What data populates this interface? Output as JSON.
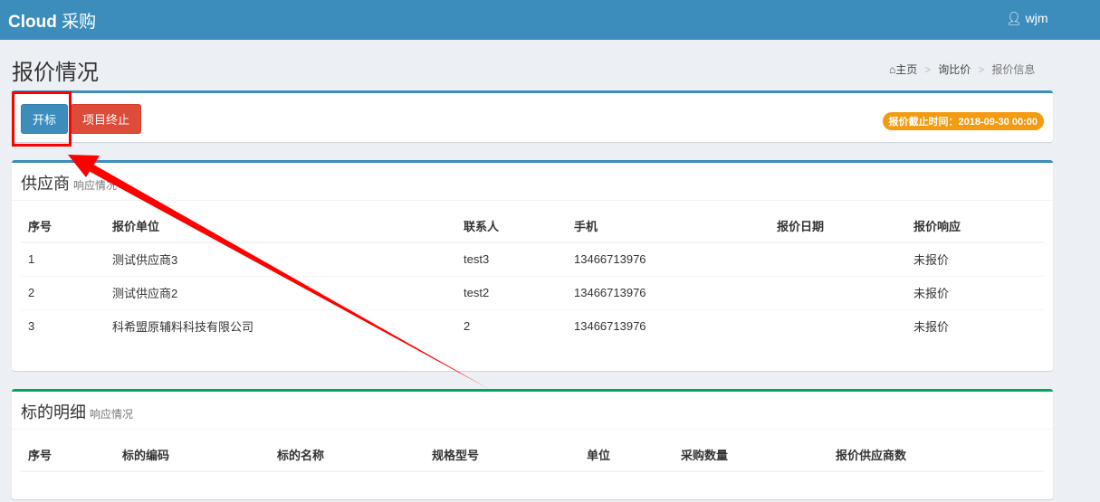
{
  "header": {
    "brand": "Cloud",
    "brand_cn": "采购",
    "user": "wjm"
  },
  "page": {
    "title": "报价情况",
    "breadcrumb": [
      "主页",
      "询比价",
      "报价信息"
    ]
  },
  "actions": {
    "open_bid": "开标",
    "terminate": "项目终止",
    "deadline": "报价截止时间：2018-09-30 00:00"
  },
  "suppliers": {
    "title": "供应商",
    "subtitle": "响应情况",
    "columns": [
      "序号",
      "报价单位",
      "联系人",
      "手机",
      "报价日期",
      "报价响应"
    ],
    "rows": [
      [
        "1",
        "测试供应商3",
        "test3",
        "13466713976",
        "",
        "未报价"
      ],
      [
        "2",
        "测试供应商2",
        "test2",
        "13466713976",
        "",
        "未报价"
      ],
      [
        "3",
        "科希盟原辅料科技有限公司",
        "2",
        "13466713976",
        "",
        "未报价"
      ]
    ]
  },
  "items": {
    "title": "标的明细",
    "subtitle": "响应情况",
    "columns": [
      "序号",
      "标的编码",
      "标的名称",
      "规格型号",
      "单位",
      "采购数量",
      "报价供应商数"
    ]
  },
  "colors": {
    "primary": "#3c8dbc",
    "danger": "#dd4b39",
    "warning": "#f39c12",
    "success": "#00a65a",
    "annotation": "#ff0000"
  }
}
